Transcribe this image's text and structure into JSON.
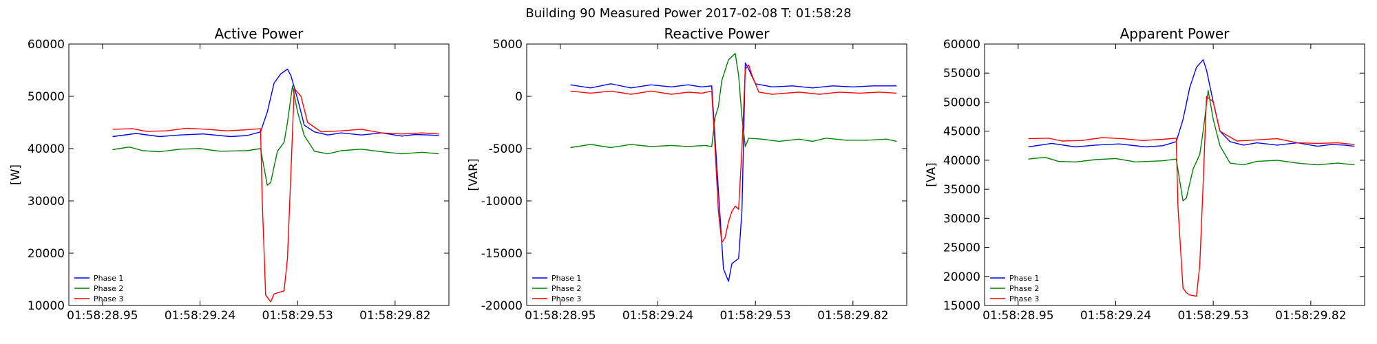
{
  "figure": {
    "title": "Building 90 Measured Power 2017-02-08 T: 01:58:28"
  },
  "colors": {
    "phase1": "#0000ff",
    "phase2": "#008000",
    "phase3": "#ff0000"
  },
  "chart_data": [
    {
      "type": "line",
      "title": "Active Power",
      "ylabel": "[W]",
      "xlabel": "",
      "ylim": [
        10000,
        60000
      ],
      "yticks": [
        10000,
        20000,
        30000,
        40000,
        50000,
        60000
      ],
      "xlim": [
        28.85,
        29.98
      ],
      "xticks": [
        28.95,
        29.24,
        29.53,
        29.82
      ],
      "xtick_labels": [
        "01:58:28.95",
        "01:58:29.24",
        "01:58:29.53",
        "01:58:29.82"
      ],
      "legend": "lower-left",
      "grid": false,
      "series": [
        {
          "name": "Phase 1",
          "color": "#0000ff",
          "points": [
            [
              28.98,
              42300
            ],
            [
              29.05,
              42900
            ],
            [
              29.12,
              42300
            ],
            [
              29.18,
              42600
            ],
            [
              29.25,
              42800
            ],
            [
              29.33,
              42300
            ],
            [
              29.38,
              42500
            ],
            [
              29.42,
              43200
            ],
            [
              29.44,
              47000
            ],
            [
              29.46,
              52500
            ],
            [
              29.48,
              54300
            ],
            [
              29.5,
              55200
            ],
            [
              29.51,
              54000
            ],
            [
              29.53,
              49500
            ],
            [
              29.55,
              44500
            ],
            [
              29.58,
              43200
            ],
            [
              29.62,
              42600
            ],
            [
              29.66,
              43000
            ],
            [
              29.72,
              42600
            ],
            [
              29.78,
              43000
            ],
            [
              29.84,
              42400
            ],
            [
              29.88,
              42700
            ],
            [
              29.92,
              42600
            ],
            [
              29.95,
              42500
            ]
          ]
        },
        {
          "name": "Phase 2",
          "color": "#008000",
          "points": [
            [
              28.98,
              39800
            ],
            [
              29.03,
              40300
            ],
            [
              29.07,
              39600
            ],
            [
              29.12,
              39400
            ],
            [
              29.18,
              39900
            ],
            [
              29.24,
              40000
            ],
            [
              29.3,
              39500
            ],
            [
              29.38,
              39600
            ],
            [
              29.42,
              40000
            ],
            [
              29.44,
              33000
            ],
            [
              29.45,
              33500
            ],
            [
              29.47,
              39500
            ],
            [
              29.49,
              41200
            ],
            [
              29.5,
              45000
            ],
            [
              29.515,
              52000
            ],
            [
              29.53,
              47000
            ],
            [
              29.55,
              42500
            ],
            [
              29.58,
              39500
            ],
            [
              29.62,
              39000
            ],
            [
              29.66,
              39600
            ],
            [
              29.72,
              39900
            ],
            [
              29.78,
              39400
            ],
            [
              29.84,
              39000
            ],
            [
              29.9,
              39300
            ],
            [
              29.95,
              39000
            ]
          ]
        },
        {
          "name": "Phase 3",
          "color": "#ff0000",
          "points": [
            [
              28.98,
              43700
            ],
            [
              29.04,
              43800
            ],
            [
              29.08,
              43300
            ],
            [
              29.14,
              43400
            ],
            [
              29.2,
              43900
            ],
            [
              29.26,
              43700
            ],
            [
              29.32,
              43400
            ],
            [
              29.38,
              43600
            ],
            [
              29.42,
              43800
            ],
            [
              29.425,
              30000
            ],
            [
              29.435,
              12000
            ],
            [
              29.45,
              10700
            ],
            [
              29.46,
              12200
            ],
            [
              29.49,
              12800
            ],
            [
              29.5,
              19000
            ],
            [
              29.51,
              35000
            ],
            [
              29.52,
              51500
            ],
            [
              29.54,
              50000
            ],
            [
              29.56,
              45000
            ],
            [
              29.6,
              43200
            ],
            [
              29.66,
              43400
            ],
            [
              29.72,
              43700
            ],
            [
              29.78,
              43000
            ],
            [
              29.84,
              42800
            ],
            [
              29.9,
              43000
            ],
            [
              29.95,
              42800
            ]
          ]
        }
      ]
    },
    {
      "type": "line",
      "title": "Reactive Power",
      "ylabel": "[VAR]",
      "xlabel": "",
      "ylim": [
        -20000,
        5000
      ],
      "yticks": [
        -20000,
        -15000,
        -10000,
        -5000,
        0,
        5000
      ],
      "xlim": [
        28.85,
        29.98
      ],
      "xticks": [
        28.95,
        29.24,
        29.53,
        29.82
      ],
      "xtick_labels": [
        "01:58:28.95",
        "01:58:29.24",
        "01:58:29.53",
        "01:58:29.82"
      ],
      "legend": "lower-left",
      "grid": false,
      "series": [
        {
          "name": "Phase 1",
          "color": "#0000ff",
          "points": [
            [
              28.98,
              1100
            ],
            [
              29.04,
              800
            ],
            [
              29.1,
              1200
            ],
            [
              29.16,
              800
            ],
            [
              29.22,
              1100
            ],
            [
              29.28,
              900
            ],
            [
              29.33,
              1100
            ],
            [
              29.37,
              900
            ],
            [
              29.4,
              1000
            ],
            [
              29.42,
              -9000
            ],
            [
              29.435,
              -16500
            ],
            [
              29.45,
              -17700
            ],
            [
              29.46,
              -16000
            ],
            [
              29.48,
              -15500
            ],
            [
              29.49,
              -11000
            ],
            [
              29.5,
              3200
            ],
            [
              29.51,
              2600
            ],
            [
              29.53,
              1200
            ],
            [
              29.58,
              900
            ],
            [
              29.64,
              1000
            ],
            [
              29.7,
              800
            ],
            [
              29.76,
              1000
            ],
            [
              29.82,
              900
            ],
            [
              29.88,
              1000
            ],
            [
              29.95,
              1000
            ]
          ]
        },
        {
          "name": "Phase 2",
          "color": "#008000",
          "points": [
            [
              28.98,
              -4900
            ],
            [
              29.04,
              -4600
            ],
            [
              29.1,
              -4900
            ],
            [
              29.16,
              -4600
            ],
            [
              29.22,
              -4800
            ],
            [
              29.28,
              -4700
            ],
            [
              29.33,
              -4800
            ],
            [
              29.38,
              -4700
            ],
            [
              29.4,
              -4800
            ],
            [
              29.41,
              -2000
            ],
            [
              29.42,
              -1000
            ],
            [
              29.43,
              1500
            ],
            [
              29.45,
              3500
            ],
            [
              29.47,
              4100
            ],
            [
              29.48,
              2000
            ],
            [
              29.49,
              -2000
            ],
            [
              29.5,
              -4800
            ],
            [
              29.51,
              -4000
            ],
            [
              29.55,
              -4100
            ],
            [
              29.6,
              -4300
            ],
            [
              29.66,
              -4100
            ],
            [
              29.7,
              -4300
            ],
            [
              29.74,
              -4000
            ],
            [
              29.8,
              -4200
            ],
            [
              29.86,
              -4200
            ],
            [
              29.92,
              -4100
            ],
            [
              29.95,
              -4300
            ]
          ]
        },
        {
          "name": "Phase 3",
          "color": "#ff0000",
          "points": [
            [
              28.98,
              500
            ],
            [
              29.04,
              300
            ],
            [
              29.1,
              500
            ],
            [
              29.16,
              200
            ],
            [
              29.22,
              500
            ],
            [
              29.28,
              200
            ],
            [
              29.33,
              400
            ],
            [
              29.37,
              300
            ],
            [
              29.4,
              500
            ],
            [
              29.41,
              -5000
            ],
            [
              29.42,
              -11000
            ],
            [
              29.43,
              -14000
            ],
            [
              29.44,
              -13500
            ],
            [
              29.45,
              -12000
            ],
            [
              29.46,
              -11000
            ],
            [
              29.47,
              -10500
            ],
            [
              29.48,
              -10800
            ],
            [
              29.49,
              -5000
            ],
            [
              29.5,
              2600
            ],
            [
              29.51,
              3000
            ],
            [
              29.52,
              2000
            ],
            [
              29.54,
              400
            ],
            [
              29.58,
              200
            ],
            [
              29.62,
              300
            ],
            [
              29.66,
              400
            ],
            [
              29.72,
              200
            ],
            [
              29.78,
              400
            ],
            [
              29.84,
              300
            ],
            [
              29.9,
              400
            ],
            [
              29.95,
              300
            ]
          ]
        }
      ]
    },
    {
      "type": "line",
      "title": "Apparent Power",
      "ylabel": "[VA]",
      "xlabel": "",
      "ylim": [
        15000,
        60000
      ],
      "yticks": [
        15000,
        20000,
        25000,
        30000,
        35000,
        40000,
        45000,
        50000,
        55000,
        60000
      ],
      "xlim": [
        28.85,
        29.98
      ],
      "xticks": [
        28.95,
        29.24,
        29.53,
        29.82
      ],
      "xtick_labels": [
        "01:58:28.95",
        "01:58:29.24",
        "01:58:29.53",
        "01:58:29.82"
      ],
      "legend": "lower-left",
      "grid": false,
      "series": [
        {
          "name": "Phase 1",
          "color": "#0000ff",
          "points": [
            [
              28.98,
              42300
            ],
            [
              29.05,
              42900
            ],
            [
              29.12,
              42300
            ],
            [
              29.18,
              42600
            ],
            [
              29.25,
              42800
            ],
            [
              29.33,
              42300
            ],
            [
              29.38,
              42500
            ],
            [
              29.42,
              43200
            ],
            [
              29.44,
              47000
            ],
            [
              29.46,
              52500
            ],
            [
              29.48,
              56000
            ],
            [
              29.5,
              57300
            ],
            [
              29.51,
              55500
            ],
            [
              29.53,
              50000
            ],
            [
              29.55,
              45000
            ],
            [
              29.58,
              43200
            ],
            [
              29.62,
              42600
            ],
            [
              29.66,
              43000
            ],
            [
              29.72,
              42600
            ],
            [
              29.78,
              43000
            ],
            [
              29.84,
              42400
            ],
            [
              29.88,
              42700
            ],
            [
              29.92,
              42600
            ],
            [
              29.95,
              42400
            ]
          ]
        },
        {
          "name": "Phase 2",
          "color": "#008000",
          "points": [
            [
              28.98,
              40200
            ],
            [
              29.03,
              40500
            ],
            [
              29.07,
              39800
            ],
            [
              29.12,
              39700
            ],
            [
              29.18,
              40100
            ],
            [
              29.24,
              40300
            ],
            [
              29.3,
              39700
            ],
            [
              29.38,
              39900
            ],
            [
              29.42,
              40200
            ],
            [
              29.44,
              33000
            ],
            [
              29.45,
              33500
            ],
            [
              29.47,
              38500
            ],
            [
              29.49,
              41000
            ],
            [
              29.5,
              45000
            ],
            [
              29.515,
              52000
            ],
            [
              29.53,
              47000
            ],
            [
              29.55,
              42500
            ],
            [
              29.58,
              39500
            ],
            [
              29.62,
              39200
            ],
            [
              29.66,
              39800
            ],
            [
              29.72,
              40000
            ],
            [
              29.78,
              39500
            ],
            [
              29.84,
              39200
            ],
            [
              29.9,
              39500
            ],
            [
              29.95,
              39200
            ]
          ]
        },
        {
          "name": "Phase 3",
          "color": "#ff0000",
          "points": [
            [
              28.98,
              43700
            ],
            [
              29.04,
              43800
            ],
            [
              29.08,
              43300
            ],
            [
              29.14,
              43400
            ],
            [
              29.2,
              43900
            ],
            [
              29.26,
              43700
            ],
            [
              29.32,
              43400
            ],
            [
              29.38,
              43600
            ],
            [
              29.42,
              43800
            ],
            [
              29.425,
              32000
            ],
            [
              29.44,
              18000
            ],
            [
              29.45,
              17200
            ],
            [
              29.46,
              16800
            ],
            [
              29.48,
              16600
            ],
            [
              29.49,
              22000
            ],
            [
              29.5,
              36000
            ],
            [
              29.51,
              51000
            ],
            [
              29.53,
              50000
            ],
            [
              29.55,
              45000
            ],
            [
              29.6,
              43300
            ],
            [
              29.66,
              43500
            ],
            [
              29.72,
              43700
            ],
            [
              29.78,
              43000
            ],
            [
              29.84,
              42900
            ],
            [
              29.9,
              43000
            ],
            [
              29.95,
              42700
            ]
          ]
        }
      ]
    }
  ]
}
